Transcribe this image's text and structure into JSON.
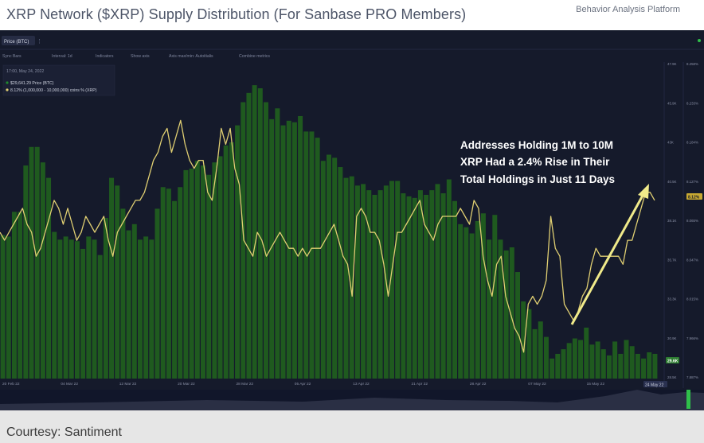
{
  "header": {
    "title": "XRP Network ($XRP) Supply Distribution (For Sanbase PRO Members)",
    "platform": "Behavior Analysis Platform"
  },
  "caption": "Courtesy: Santiment",
  "colors": {
    "panel_bg": "#151a2b",
    "bar": "#1f5a1f",
    "line": "#e0cf72",
    "arrow": "#f0ea8a",
    "annotation": "#ffffff",
    "price_badge": "#2e7d32",
    "holdings_badge": "#c7a832",
    "muted_text": "#8a90a6"
  },
  "toolbar": {
    "metric_tab": "Price (BTC)",
    "items": [
      "Sync Bars",
      "Interval: 1d",
      "Indicators",
      "Show axis",
      "Axis max/min: Autoitialis",
      "Combine metrics"
    ]
  },
  "tooltip": {
    "date": "17:00, May 24, 2022",
    "price": "$29,641.29 Price (BTC)",
    "holdings": "8.12% (1,000,000 - 10,000,000) coins % (XRP)"
  },
  "annotation": {
    "line1": "Addresses Holding 1M to 10M",
    "line2": "XRP Had a 2.4% Rise in Their",
    "line3": "Total Holdings in Just 11 Days"
  },
  "chart_data": {
    "type": "bar",
    "title": "XRP Network ($XRP) Supply Distribution",
    "x_ticks": [
      "20 Feb 22",
      "04 Mar 22",
      "12 Mar 22",
      "20 Mar 22",
      "28 Mar 22",
      "05 Apr 22",
      "13 Apr 22",
      "21 Apr 22",
      "28 Apr 22",
      "07 May 22",
      "15 May 22",
      "23 May 22"
    ],
    "y_left_ticks": [
      "47.9K",
      "45.9K",
      "43K",
      "40.5K",
      "38.1K",
      "35.7K",
      "33.3K",
      "30.9K",
      "28.5K"
    ],
    "y_right_ticks": [
      "8.258%",
      "8.233%",
      "8.184%",
      "8.127%",
      "8.065%",
      "8.047%",
      "8.015%",
      "7.966%",
      "7.887%"
    ],
    "price_badge": "29.6K",
    "holdings_badge": "8.12%",
    "last_date_badge": "24 May 22",
    "series": [
      {
        "name": "Price (BTC)",
        "kind": "bar",
        "ylim": [
          28.0,
          48.5
        ],
        "values": [
          37.3,
          37.2,
          38.8,
          38.8,
          41.8,
          43.0,
          43.0,
          42.0,
          41.0,
          37.5,
          37.0,
          37.2,
          37.0,
          36.9,
          36.4,
          37.2,
          37.0,
          36.0,
          38.4,
          41.0,
          40.5,
          39.0,
          37.6,
          38.0,
          37.0,
          37.2,
          37.0,
          39.0,
          40.4,
          40.3,
          39.5,
          40.4,
          41.5,
          41.6,
          42.1,
          41.8,
          41.2,
          42.0,
          42.4,
          43.1,
          43.3,
          44.4,
          45.9,
          46.5,
          47.0,
          46.8,
          45.9,
          44.8,
          45.5,
          44.4,
          44.7,
          44.6,
          45.0,
          44.0,
          44.0,
          43.6,
          42.1,
          42.5,
          42.3,
          41.7,
          41.0,
          41.1,
          40.5,
          40.6,
          40.2,
          39.9,
          40.2,
          40.5,
          40.8,
          40.8,
          40.0,
          39.8,
          39.7,
          40.2,
          39.9,
          40.2,
          40.6,
          40.0,
          40.9,
          39.5,
          38.0,
          37.8,
          37.4,
          38.2,
          38.7,
          37.0,
          38.6,
          37.0,
          36.3,
          36.5,
          34.9,
          33.0,
          32.5,
          31.2,
          31.7,
          30.7,
          29.3,
          29.6,
          29.9,
          30.3,
          30.6,
          30.5,
          31.3,
          30.2,
          30.4,
          29.9,
          29.5,
          30.4,
          29.6,
          30.5,
          30.1,
          29.6,
          29.3,
          29.7,
          29.6
        ]
      },
      {
        "name": "1,000,000 - 10,000,000 coins % (XRP)",
        "kind": "line",
        "ylim": [
          7.887,
          8.283
        ],
        "values": [
          8.07,
          8.06,
          8.07,
          8.08,
          8.09,
          8.1,
          8.08,
          8.07,
          8.04,
          8.05,
          8.07,
          8.09,
          8.11,
          8.1,
          8.08,
          8.1,
          8.08,
          8.06,
          8.07,
          8.09,
          8.08,
          8.07,
          8.08,
          8.09,
          8.06,
          8.04,
          8.07,
          8.08,
          8.09,
          8.1,
          8.11,
          8.11,
          8.12,
          8.14,
          8.16,
          8.17,
          8.19,
          8.2,
          8.17,
          8.19,
          8.21,
          8.18,
          8.16,
          8.15,
          8.16,
          8.16,
          8.12,
          8.11,
          8.15,
          8.2,
          8.18,
          8.2,
          8.15,
          8.13,
          8.06,
          8.05,
          8.04,
          8.07,
          8.06,
          8.04,
          8.05,
          8.06,
          8.07,
          8.06,
          8.05,
          8.05,
          8.04,
          8.05,
          8.04,
          8.05,
          8.05,
          8.05,
          8.06,
          8.07,
          8.08,
          8.06,
          8.04,
          8.03,
          7.99,
          8.09,
          8.1,
          8.09,
          8.07,
          8.07,
          8.06,
          8.03,
          7.99,
          8.03,
          8.07,
          8.07,
          8.08,
          8.09,
          8.1,
          8.11,
          8.08,
          8.07,
          8.06,
          8.08,
          8.09,
          8.09,
          8.09,
          8.09,
          8.1,
          8.09,
          8.08,
          8.11,
          8.1,
          8.04,
          8.01,
          7.99,
          8.03,
          8.04,
          7.99,
          7.97,
          7.95,
          7.94,
          7.92,
          7.98,
          7.99,
          7.98,
          7.99,
          8.01,
          8.09,
          8.05,
          8.04,
          7.98,
          7.97,
          7.96,
          7.97,
          7.99,
          8.0,
          8.03,
          8.05,
          8.04,
          8.04,
          8.04,
          8.04,
          8.04,
          8.03,
          8.06,
          8.06,
          8.08,
          8.1,
          8.12,
          8.12,
          8.11
        ]
      }
    ]
  }
}
